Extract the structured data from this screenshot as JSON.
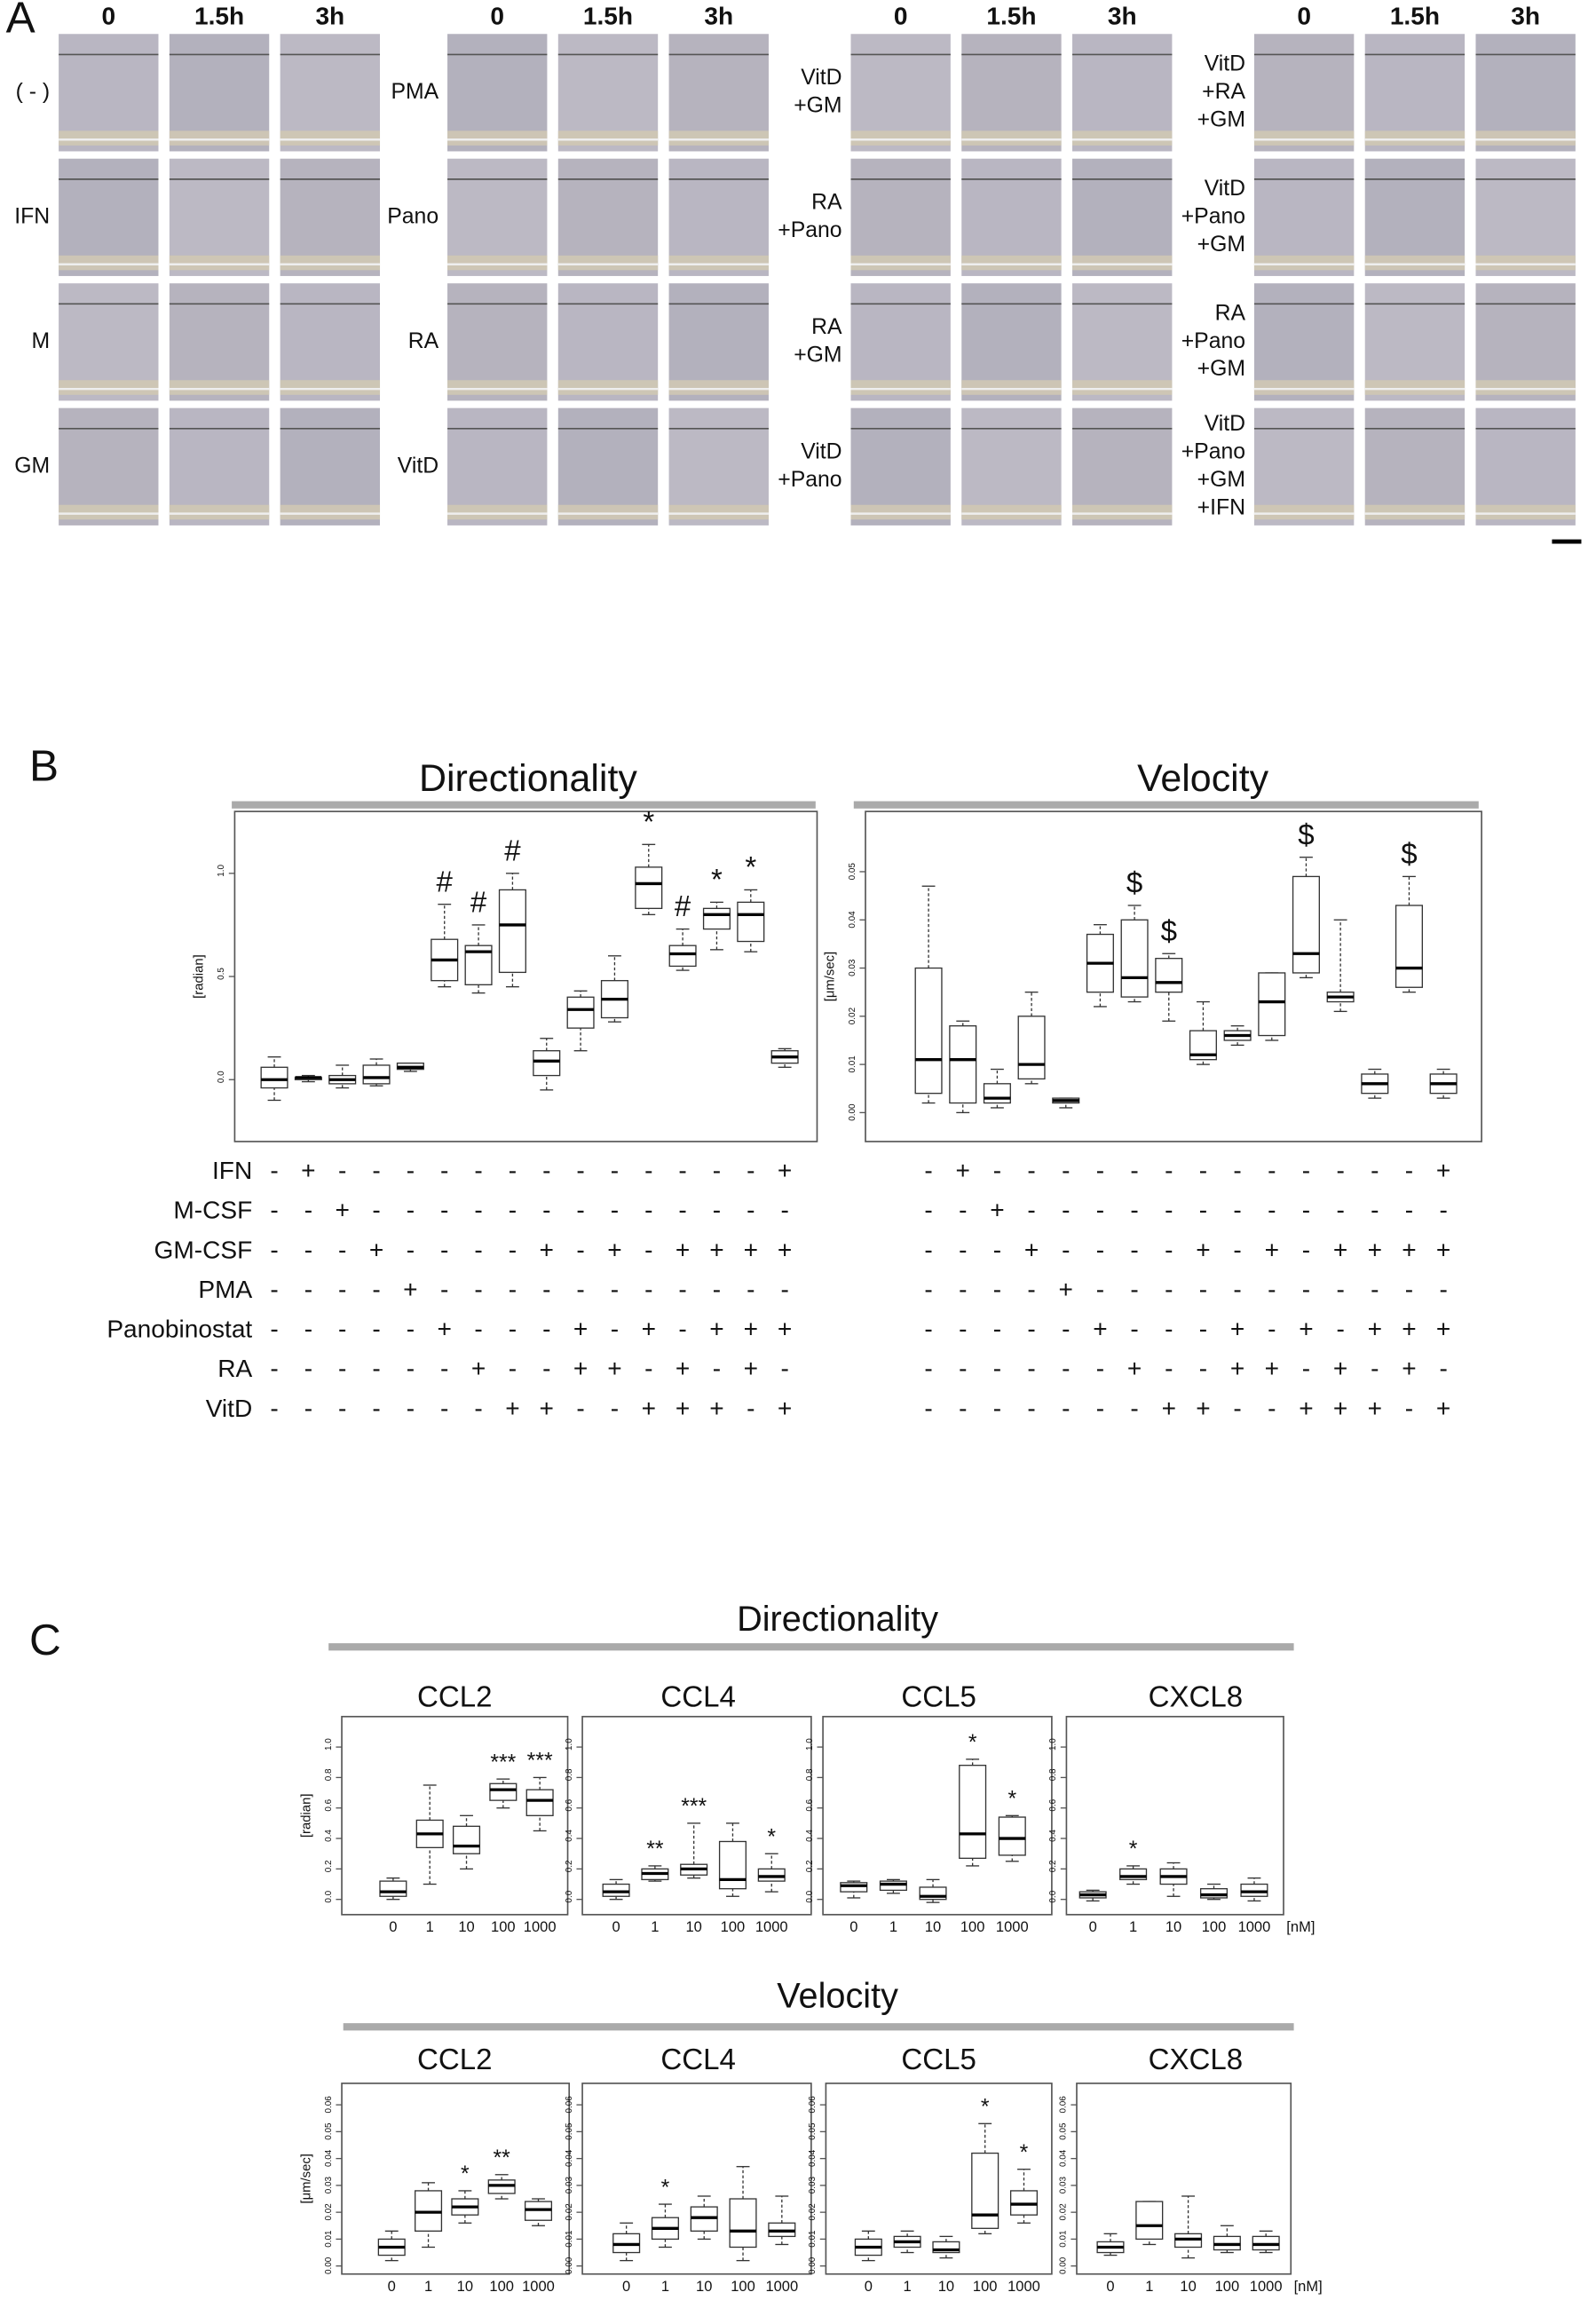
{
  "panel_a": {
    "label": "A",
    "groups": [
      {
        "columns": [
          "0",
          "1.5h",
          "3h"
        ],
        "rows": [
          [
            "( - )"
          ],
          [
            "IFN"
          ],
          [
            "M"
          ],
          [
            "GM"
          ]
        ]
      },
      {
        "columns": [
          "0",
          "1.5h",
          "3h"
        ],
        "rows": [
          [
            "PMA"
          ],
          [
            "Pano"
          ],
          [
            "RA"
          ],
          [
            "VitD"
          ]
        ]
      },
      {
        "columns": [
          "0",
          "1.5h",
          "3h"
        ],
        "rows": [
          [
            "VitD",
            "+GM"
          ],
          [
            "RA",
            "+Pano"
          ],
          [
            "RA",
            "+GM"
          ],
          [
            "VitD",
            "+Pano"
          ]
        ]
      },
      {
        "columns": [
          "0",
          "1.5h",
          "3h"
        ],
        "rows": [
          [
            "VitD",
            "+RA",
            "+GM"
          ],
          [
            "VitD",
            "+Pano",
            "+GM"
          ],
          [
            "RA",
            "+Pano",
            "+GM"
          ],
          [
            "VitD",
            "+Pano",
            "+GM",
            "+IFN"
          ]
        ]
      }
    ]
  },
  "panel_b": {
    "label": "B"
  },
  "panel_c": {
    "label": "C",
    "directionality_title": "Directionality",
    "velocity_title": "Velocity"
  },
  "treatment_table": {
    "rows": [
      {
        "name": "IFN",
        "signs": [
          "-",
          "+",
          "-",
          "-",
          "-",
          "-",
          "-",
          "-",
          "-",
          "-",
          "-",
          "-",
          "-",
          "-",
          "-",
          "+"
        ]
      },
      {
        "name": "M-CSF",
        "signs": [
          "-",
          "-",
          "+",
          "-",
          "-",
          "-",
          "-",
          "-",
          "-",
          "-",
          "-",
          "-",
          "-",
          "-",
          "-",
          "-"
        ]
      },
      {
        "name": "GM-CSF",
        "signs": [
          "-",
          "-",
          "-",
          "+",
          "-",
          "-",
          "-",
          "-",
          "+",
          "-",
          "+",
          "-",
          "+",
          "+",
          "+",
          "+"
        ]
      },
      {
        "name": "PMA",
        "signs": [
          "-",
          "-",
          "-",
          "-",
          "+",
          "-",
          "-",
          "-",
          "-",
          "-",
          "-",
          "-",
          "-",
          "-",
          "-",
          "-"
        ]
      },
      {
        "name": "Panobinostat",
        "signs": [
          "-",
          "-",
          "-",
          "-",
          "-",
          "+",
          "-",
          "-",
          "-",
          "+",
          "-",
          "+",
          "-",
          "+",
          "+",
          "+"
        ]
      },
      {
        "name": "RA",
        "signs": [
          "-",
          "-",
          "-",
          "-",
          "-",
          "-",
          "+",
          "-",
          "-",
          "+",
          "+",
          "-",
          "+",
          "-",
          "+",
          "-"
        ]
      },
      {
        "name": "VitD",
        "signs": [
          "-",
          "-",
          "-",
          "-",
          "-",
          "-",
          "-",
          "+",
          "+",
          "-",
          "-",
          "+",
          "+",
          "+",
          "-",
          "+"
        ]
      }
    ]
  },
  "chart_data": [
    {
      "type": "box",
      "title": "Directionality",
      "ylabel": "[radian]",
      "ylim": [
        -0.3,
        1.3
      ],
      "yticks": [
        {
          "value": 0,
          "label": "0.0"
        },
        {
          "value": 0.5,
          "label": "0.5"
        },
        {
          "value": 1,
          "label": "1.0"
        }
      ],
      "min": [
        -0.1,
        -0.01,
        -0.04,
        -0.03,
        0.04,
        0.45,
        0.42,
        0.45,
        -0.05,
        0.14,
        0.28,
        0.8,
        0.53,
        0.63,
        0.62,
        0.06
      ],
      "q1": [
        -0.04,
        0,
        -0.02,
        -0.02,
        0.05,
        0.48,
        0.46,
        0.52,
        0.02,
        0.25,
        0.3,
        0.83,
        0.55,
        0.73,
        0.67,
        0.08
      ],
      "median": [
        0,
        0.01,
        0,
        0.01,
        0.06,
        0.58,
        0.62,
        0.75,
        0.09,
        0.34,
        0.39,
        0.95,
        0.61,
        0.8,
        0.8,
        0.11
      ],
      "q3": [
        0.06,
        0.01,
        0.02,
        0.07,
        0.08,
        0.68,
        0.65,
        0.92,
        0.14,
        0.4,
        0.48,
        1.03,
        0.65,
        0.83,
        0.86,
        0.14
      ],
      "max": [
        0.11,
        0.02,
        0.07,
        0.1,
        0.08,
        0.85,
        0.75,
        1.0,
        0.2,
        0.43,
        0.6,
        1.14,
        0.73,
        0.86,
        0.92,
        0.15
      ],
      "sig_labels": [
        null,
        null,
        null,
        null,
        null,
        "#",
        "#",
        "#",
        null,
        null,
        null,
        "*",
        "#",
        "*",
        "*",
        null
      ]
    },
    {
      "type": "box",
      "title": "Velocity",
      "ylabel": "[μm/sec]",
      "ylim": [
        -0.006,
        0.0625
      ],
      "yticks": [
        {
          "value": 0,
          "label": "0.00"
        },
        {
          "value": 0.01,
          "label": "0.01"
        },
        {
          "value": 0.02,
          "label": "0.02"
        },
        {
          "value": 0.03,
          "label": "0.03"
        },
        {
          "value": 0.04,
          "label": "0.04"
        },
        {
          "value": 0.05,
          "label": "0.05"
        }
      ],
      "min": [
        0.002,
        0,
        0.001,
        0.006,
        0.001,
        0.022,
        0.023,
        0.019,
        0.01,
        0.014,
        0.015,
        0.028,
        0.021,
        0.003,
        0.025,
        0.003
      ],
      "q1": [
        0.004,
        0.002,
        0.002,
        0.007,
        0.002,
        0.025,
        0.024,
        0.025,
        0.011,
        0.015,
        0.016,
        0.029,
        0.023,
        0.004,
        0.026,
        0.004
      ],
      "median": [
        0.011,
        0.011,
        0.003,
        0.01,
        0.0025,
        0.031,
        0.028,
        0.027,
        0.012,
        0.016,
        0.023,
        0.033,
        0.024,
        0.006,
        0.03,
        0.006
      ],
      "q3": [
        0.03,
        0.018,
        0.006,
        0.02,
        0.003,
        0.037,
        0.04,
        0.032,
        0.017,
        0.017,
        0.029,
        0.049,
        0.025,
        0.008,
        0.043,
        0.008
      ],
      "max": [
        0.047,
        0.019,
        0.009,
        0.025,
        0.003,
        0.039,
        0.043,
        0.033,
        0.023,
        0.018,
        0.029,
        0.053,
        0.04,
        0.009,
        0.049,
        0.009
      ],
      "sig_labels": [
        null,
        null,
        null,
        null,
        null,
        null,
        "$",
        "$",
        null,
        null,
        null,
        "$",
        null,
        null,
        "$",
        null
      ]
    },
    {
      "type": "box",
      "title": "CCL2",
      "ylabel": "[radian]",
      "ylim": [
        -0.1,
        1.2
      ],
      "categories": [
        "0",
        "1",
        "10",
        "100",
        "1000"
      ],
      "yticks": [
        {
          "value": 0,
          "label": "0.0"
        },
        {
          "value": 0.2,
          "label": "0.2"
        },
        {
          "value": 0.4,
          "label": "0.4"
        },
        {
          "value": 0.6,
          "label": "0.6"
        },
        {
          "value": 0.8,
          "label": "0.8"
        },
        {
          "value": 1,
          "label": "1.0"
        }
      ],
      "min": [
        0,
        0.1,
        0.2,
        0.6,
        0.45
      ],
      "q1": [
        0.02,
        0.34,
        0.3,
        0.65,
        0.55
      ],
      "median": [
        0.05,
        0.43,
        0.35,
        0.72,
        0.65
      ],
      "q3": [
        0.12,
        0.52,
        0.48,
        0.76,
        0.72
      ],
      "max": [
        0.14,
        0.75,
        0.55,
        0.79,
        0.8
      ],
      "sig_labels": [
        null,
        null,
        null,
        "***",
        "***"
      ]
    },
    {
      "type": "box",
      "title": "CCL4",
      "ylim": [
        -0.1,
        1.2
      ],
      "categories": [
        "0",
        "1",
        "10",
        "100",
        "1000"
      ],
      "yticks": [
        {
          "value": 0,
          "label": "0.0"
        },
        {
          "value": 0.2,
          "label": "0.2"
        },
        {
          "value": 0.4,
          "label": "0.4"
        },
        {
          "value": 0.6,
          "label": "0.6"
        },
        {
          "value": 0.8,
          "label": "0.8"
        },
        {
          "value": 1,
          "label": "1.0"
        }
      ],
      "min": [
        0,
        0.12,
        0.14,
        0.02,
        0.05
      ],
      "q1": [
        0.02,
        0.13,
        0.16,
        0.07,
        0.12
      ],
      "median": [
        0.05,
        0.17,
        0.2,
        0.13,
        0.15
      ],
      "q3": [
        0.1,
        0.2,
        0.23,
        0.38,
        0.2
      ],
      "max": [
        0.13,
        0.22,
        0.5,
        0.5,
        0.3
      ],
      "sig_labels": [
        null,
        "**",
        "***",
        null,
        "*"
      ]
    },
    {
      "type": "box",
      "title": "CCL5",
      "ylim": [
        -0.1,
        1.2
      ],
      "categories": [
        "0",
        "1",
        "10",
        "100",
        "1000"
      ],
      "yticks": [
        {
          "value": 0,
          "label": "0.0"
        },
        {
          "value": 0.2,
          "label": "0.2"
        },
        {
          "value": 0.4,
          "label": "0.4"
        },
        {
          "value": 0.6,
          "label": "0.6"
        },
        {
          "value": 0.8,
          "label": "0.8"
        },
        {
          "value": 1,
          "label": "1.0"
        }
      ],
      "min": [
        0.01,
        0.04,
        -0.02,
        0.22,
        0.25
      ],
      "q1": [
        0.05,
        0.06,
        0,
        0.27,
        0.29
      ],
      "median": [
        0.09,
        0.1,
        0.02,
        0.43,
        0.4
      ],
      "q3": [
        0.11,
        0.12,
        0.08,
        0.88,
        0.54
      ],
      "max": [
        0.12,
        0.13,
        0.13,
        0.92,
        0.55
      ],
      "sig_labels": [
        null,
        null,
        null,
        "*",
        "*"
      ]
    },
    {
      "type": "box",
      "title": "CXCL8",
      "xlabel": "[nM]",
      "ylim": [
        -0.1,
        1.2
      ],
      "categories": [
        "0",
        "1",
        "10",
        "100",
        "1000"
      ],
      "yticks": [
        {
          "value": 0,
          "label": "0.0"
        },
        {
          "value": 0.2,
          "label": "0.2"
        },
        {
          "value": 0.4,
          "label": "0.4"
        },
        {
          "value": 0.6,
          "label": "0.6"
        },
        {
          "value": 0.8,
          "label": "0.8"
        },
        {
          "value": 1,
          "label": "1.0"
        }
      ],
      "min": [
        -0.01,
        0.1,
        0.02,
        0,
        -0.01
      ],
      "q1": [
        0.01,
        0.13,
        0.1,
        0.01,
        0.02
      ],
      "median": [
        0.03,
        0.15,
        0.15,
        0.03,
        0.05
      ],
      "q3": [
        0.05,
        0.2,
        0.2,
        0.07,
        0.1
      ],
      "max": [
        0.06,
        0.22,
        0.24,
        0.1,
        0.14
      ],
      "sig_labels": [
        null,
        "*",
        null,
        null,
        null
      ]
    },
    {
      "type": "box",
      "title": "CCL2",
      "ylabel": "[μm/sec]",
      "ylim": [
        -0.003,
        0.068
      ],
      "categories": [
        "0",
        "1",
        "10",
        "100",
        "1000"
      ],
      "yticks": [
        {
          "value": 0,
          "label": "0.00"
        },
        {
          "value": 0.01,
          "label": "0.01"
        },
        {
          "value": 0.02,
          "label": "0.02"
        },
        {
          "value": 0.03,
          "label": "0.03"
        },
        {
          "value": 0.04,
          "label": "0.04"
        },
        {
          "value": 0.05,
          "label": "0.05"
        },
        {
          "value": 0.06,
          "label": "0.06"
        }
      ],
      "min": [
        0.002,
        0.007,
        0.016,
        0.025,
        0.015
      ],
      "q1": [
        0.004,
        0.013,
        0.019,
        0.027,
        0.017
      ],
      "median": [
        0.007,
        0.02,
        0.022,
        0.03,
        0.021
      ],
      "q3": [
        0.01,
        0.028,
        0.025,
        0.032,
        0.024
      ],
      "max": [
        0.013,
        0.031,
        0.028,
        0.034,
        0.025
      ],
      "sig_labels": [
        null,
        null,
        "*",
        "**",
        null
      ]
    },
    {
      "type": "box",
      "title": "CCL4",
      "ylim": [
        -0.003,
        0.068
      ],
      "categories": [
        "0",
        "1",
        "10",
        "100",
        "1000"
      ],
      "yticks": [
        {
          "value": 0,
          "label": "0.00"
        },
        {
          "value": 0.01,
          "label": "0.01"
        },
        {
          "value": 0.02,
          "label": "0.02"
        },
        {
          "value": 0.03,
          "label": "0.03"
        },
        {
          "value": 0.04,
          "label": "0.04"
        },
        {
          "value": 0.05,
          "label": "0.05"
        },
        {
          "value": 0.06,
          "label": "0.06"
        }
      ],
      "min": [
        0.002,
        0.007,
        0.01,
        0.002,
        0.008
      ],
      "q1": [
        0.005,
        0.01,
        0.013,
        0.007,
        0.011
      ],
      "median": [
        0.008,
        0.014,
        0.018,
        0.013,
        0.013
      ],
      "q3": [
        0.012,
        0.018,
        0.022,
        0.025,
        0.016
      ],
      "max": [
        0.016,
        0.023,
        0.026,
        0.037,
        0.026
      ],
      "sig_labels": [
        null,
        "*",
        null,
        null,
        null
      ]
    },
    {
      "type": "box",
      "title": "CCL5",
      "ylim": [
        -0.003,
        0.068
      ],
      "categories": [
        "0",
        "1",
        "10",
        "100",
        "1000"
      ],
      "yticks": [
        {
          "value": 0,
          "label": "0.00"
        },
        {
          "value": 0.01,
          "label": "0.01"
        },
        {
          "value": 0.02,
          "label": "0.02"
        },
        {
          "value": 0.03,
          "label": "0.03"
        },
        {
          "value": 0.04,
          "label": "0.04"
        },
        {
          "value": 0.05,
          "label": "0.05"
        },
        {
          "value": 0.06,
          "label": "0.06"
        }
      ],
      "min": [
        0.002,
        0.005,
        0.003,
        0.012,
        0.016
      ],
      "q1": [
        0.004,
        0.007,
        0.005,
        0.014,
        0.019
      ],
      "median": [
        0.007,
        0.009,
        0.006,
        0.019,
        0.023
      ],
      "q3": [
        0.01,
        0.011,
        0.009,
        0.042,
        0.028
      ],
      "max": [
        0.013,
        0.013,
        0.011,
        0.053,
        0.036
      ],
      "sig_labels": [
        null,
        null,
        null,
        "*",
        "*"
      ]
    },
    {
      "type": "box",
      "title": "CXCL8",
      "xlabel": "[nM]",
      "ylim": [
        -0.003,
        0.068
      ],
      "categories": [
        "0",
        "1",
        "10",
        "100",
        "1000"
      ],
      "yticks": [
        {
          "value": 0,
          "label": "0.00"
        },
        {
          "value": 0.01,
          "label": "0.01"
        },
        {
          "value": 0.02,
          "label": "0.02"
        },
        {
          "value": 0.03,
          "label": "0.03"
        },
        {
          "value": 0.04,
          "label": "0.04"
        },
        {
          "value": 0.05,
          "label": "0.05"
        },
        {
          "value": 0.06,
          "label": "0.06"
        }
      ],
      "min": [
        0.004,
        0.008,
        0.003,
        0.005,
        0.005
      ],
      "q1": [
        0.005,
        0.01,
        0.007,
        0.006,
        0.006
      ],
      "median": [
        0.007,
        0.015,
        0.01,
        0.008,
        0.008
      ],
      "q3": [
        0.009,
        0.024,
        0.012,
        0.011,
        0.011
      ],
      "max": [
        0.012,
        0.024,
        0.026,
        0.015,
        0.013
      ],
      "sig_labels": [
        null,
        null,
        null,
        null,
        null
      ]
    }
  ]
}
